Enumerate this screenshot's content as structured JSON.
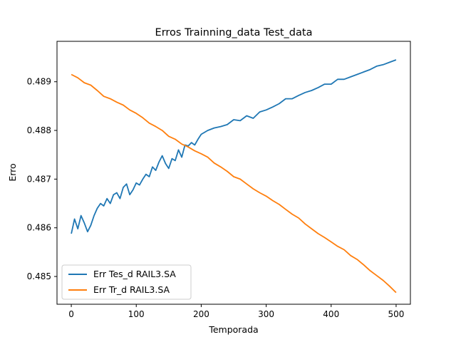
{
  "chart_data": {
    "type": "line",
    "title": "Erros Trainning_data Test_data",
    "xlabel": "Temporada",
    "ylabel": "Erro",
    "xlim": [
      -22,
      522
    ],
    "ylim": [
      0.48443,
      0.48983
    ],
    "xticks": [
      0,
      100,
      200,
      300,
      400,
      500
    ],
    "yticks": [
      0.485,
      0.486,
      0.487,
      0.488,
      0.489
    ],
    "ytick_labels": [
      "0.485",
      "0.486",
      "0.487",
      "0.488",
      "0.489"
    ],
    "grid": false,
    "legend_position": "lower-left",
    "series": [
      {
        "name": "Err Tes_d RAIL3.SA",
        "color": "#1f77b4",
        "x": [
          0,
          5,
          10,
          15,
          20,
          25,
          30,
          35,
          40,
          45,
          50,
          55,
          60,
          65,
          70,
          75,
          80,
          85,
          90,
          95,
          100,
          105,
          110,
          115,
          120,
          125,
          130,
          135,
          140,
          145,
          150,
          155,
          160,
          165,
          170,
          175,
          180,
          185,
          190,
          195,
          200,
          210,
          220,
          230,
          240,
          250,
          260,
          270,
          280,
          290,
          300,
          310,
          320,
          330,
          340,
          350,
          360,
          370,
          380,
          390,
          400,
          410,
          420,
          430,
          440,
          450,
          460,
          470,
          480,
          490,
          500
        ],
        "values": [
          0.48588,
          0.48618,
          0.48598,
          0.48625,
          0.4861,
          0.48592,
          0.48605,
          0.48625,
          0.4864,
          0.4865,
          0.48645,
          0.4866,
          0.4865,
          0.48668,
          0.48672,
          0.4866,
          0.48683,
          0.4869,
          0.48668,
          0.48678,
          0.48692,
          0.48688,
          0.487,
          0.4871,
          0.48705,
          0.48725,
          0.48718,
          0.48735,
          0.48748,
          0.48732,
          0.48722,
          0.48742,
          0.48738,
          0.4876,
          0.48745,
          0.4877,
          0.48768,
          0.48775,
          0.4877,
          0.48782,
          0.48792,
          0.488,
          0.48805,
          0.48808,
          0.48812,
          0.48822,
          0.4882,
          0.4883,
          0.48825,
          0.48838,
          0.48842,
          0.48848,
          0.48855,
          0.48865,
          0.48865,
          0.48872,
          0.48878,
          0.48882,
          0.48888,
          0.48895,
          0.48895,
          0.48905,
          0.48905,
          0.4891,
          0.48915,
          0.4892,
          0.48925,
          0.48932,
          0.48935,
          0.4894,
          0.48945
        ]
      },
      {
        "name": "Err Tr_d RAIL3.SA",
        "color": "#ff7f0e",
        "x": [
          0,
          10,
          20,
          30,
          40,
          50,
          60,
          70,
          80,
          90,
          100,
          110,
          120,
          130,
          140,
          150,
          160,
          170,
          180,
          190,
          200,
          210,
          220,
          230,
          240,
          250,
          260,
          270,
          280,
          290,
          300,
          310,
          320,
          330,
          340,
          350,
          360,
          370,
          380,
          390,
          400,
          410,
          420,
          430,
          440,
          450,
          460,
          470,
          480,
          490,
          500
        ],
        "values": [
          0.48915,
          0.48908,
          0.48898,
          0.48893,
          0.48882,
          0.4887,
          0.48865,
          0.48858,
          0.48852,
          0.48842,
          0.48835,
          0.48826,
          0.48815,
          0.48808,
          0.488,
          0.48788,
          0.48782,
          0.48772,
          0.48766,
          0.48758,
          0.48752,
          0.48745,
          0.48733,
          0.48725,
          0.48716,
          0.48705,
          0.487,
          0.4869,
          0.4868,
          0.48672,
          0.48665,
          0.48656,
          0.48648,
          0.48638,
          0.48628,
          0.4862,
          0.48608,
          0.48598,
          0.48588,
          0.4858,
          0.48571,
          0.48562,
          0.48555,
          0.48543,
          0.48535,
          0.48524,
          0.48512,
          0.48502,
          0.48492,
          0.4848,
          0.48467
        ]
      }
    ]
  }
}
